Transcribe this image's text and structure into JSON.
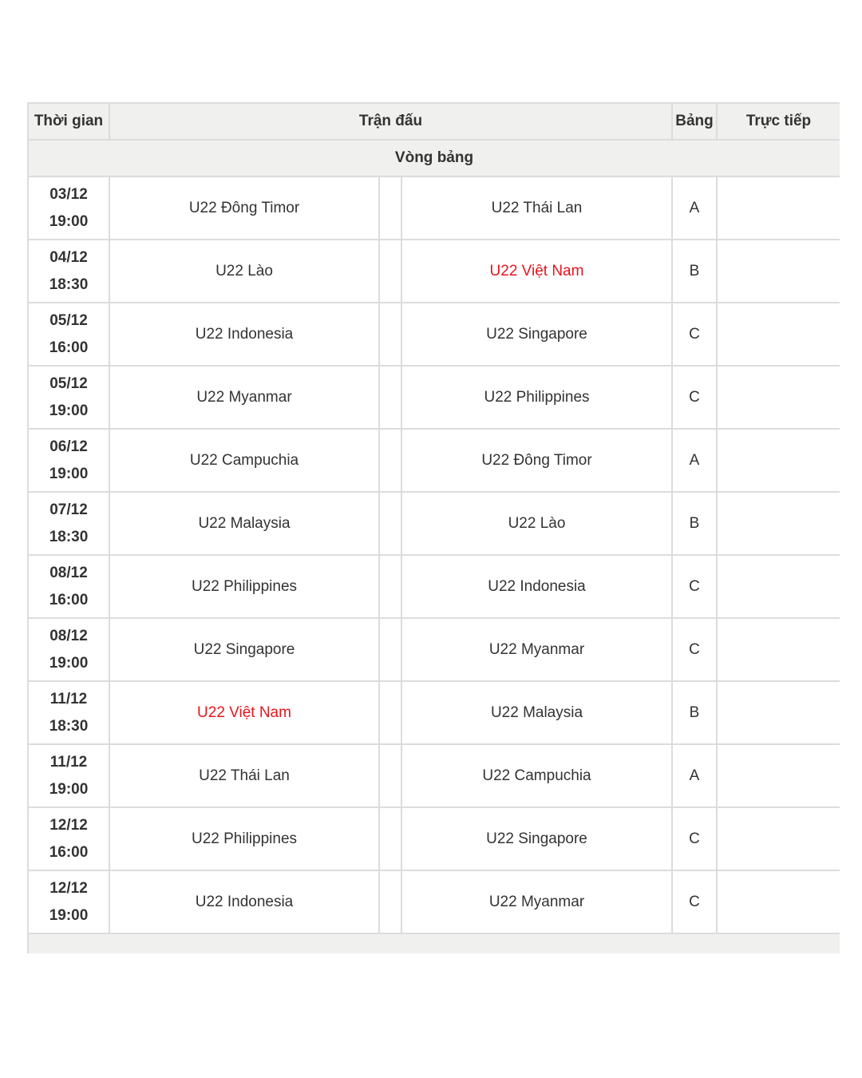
{
  "headers": {
    "time": "Thời gian",
    "match": "Trận đấu",
    "group": "Bảng",
    "live": "Trực tiếp"
  },
  "stage": "Vòng bảng",
  "highlight_team": "U22 Việt Nam",
  "highlight_color": "#e8141b",
  "matches": [
    {
      "date": "03/12",
      "time": "19:00",
      "home": "U22 Đông Timor",
      "away": "U22 Thái Lan",
      "group": "A"
    },
    {
      "date": "04/12",
      "time": "18:30",
      "home": "U22 Lào",
      "away": "U22 Việt Nam",
      "group": "B"
    },
    {
      "date": "05/12",
      "time": "16:00",
      "home": "U22 Indonesia",
      "away": "U22 Singapore",
      "group": "C"
    },
    {
      "date": "05/12",
      "time": "19:00",
      "home": "U22 Myanmar",
      "away": "U22 Philippines",
      "group": "C"
    },
    {
      "date": "06/12",
      "time": "19:00",
      "home": "U22 Campuchia",
      "away": "U22 Đông Timor",
      "group": "A"
    },
    {
      "date": "07/12",
      "time": "18:30",
      "home": "U22 Malaysia",
      "away": "U22 Lào",
      "group": "B"
    },
    {
      "date": "08/12",
      "time": "16:00",
      "home": "U22 Philippines",
      "away": "U22 Indonesia",
      "group": "C"
    },
    {
      "date": "08/12",
      "time": "19:00",
      "home": "U22 Singapore",
      "away": "U22 Myanmar",
      "group": "C"
    },
    {
      "date": "11/12",
      "time": "18:30",
      "home": "U22 Việt Nam",
      "away": "U22 Malaysia",
      "group": "B"
    },
    {
      "date": "11/12",
      "time": "19:00",
      "home": "U22 Thái Lan",
      "away": "U22 Campuchia",
      "group": "A"
    },
    {
      "date": "12/12",
      "time": "16:00",
      "home": "U22 Philippines",
      "away": "U22 Singapore",
      "group": "C"
    },
    {
      "date": "12/12",
      "time": "19:00",
      "home": "U22 Indonesia",
      "away": "U22 Myanmar",
      "group": "C"
    }
  ]
}
